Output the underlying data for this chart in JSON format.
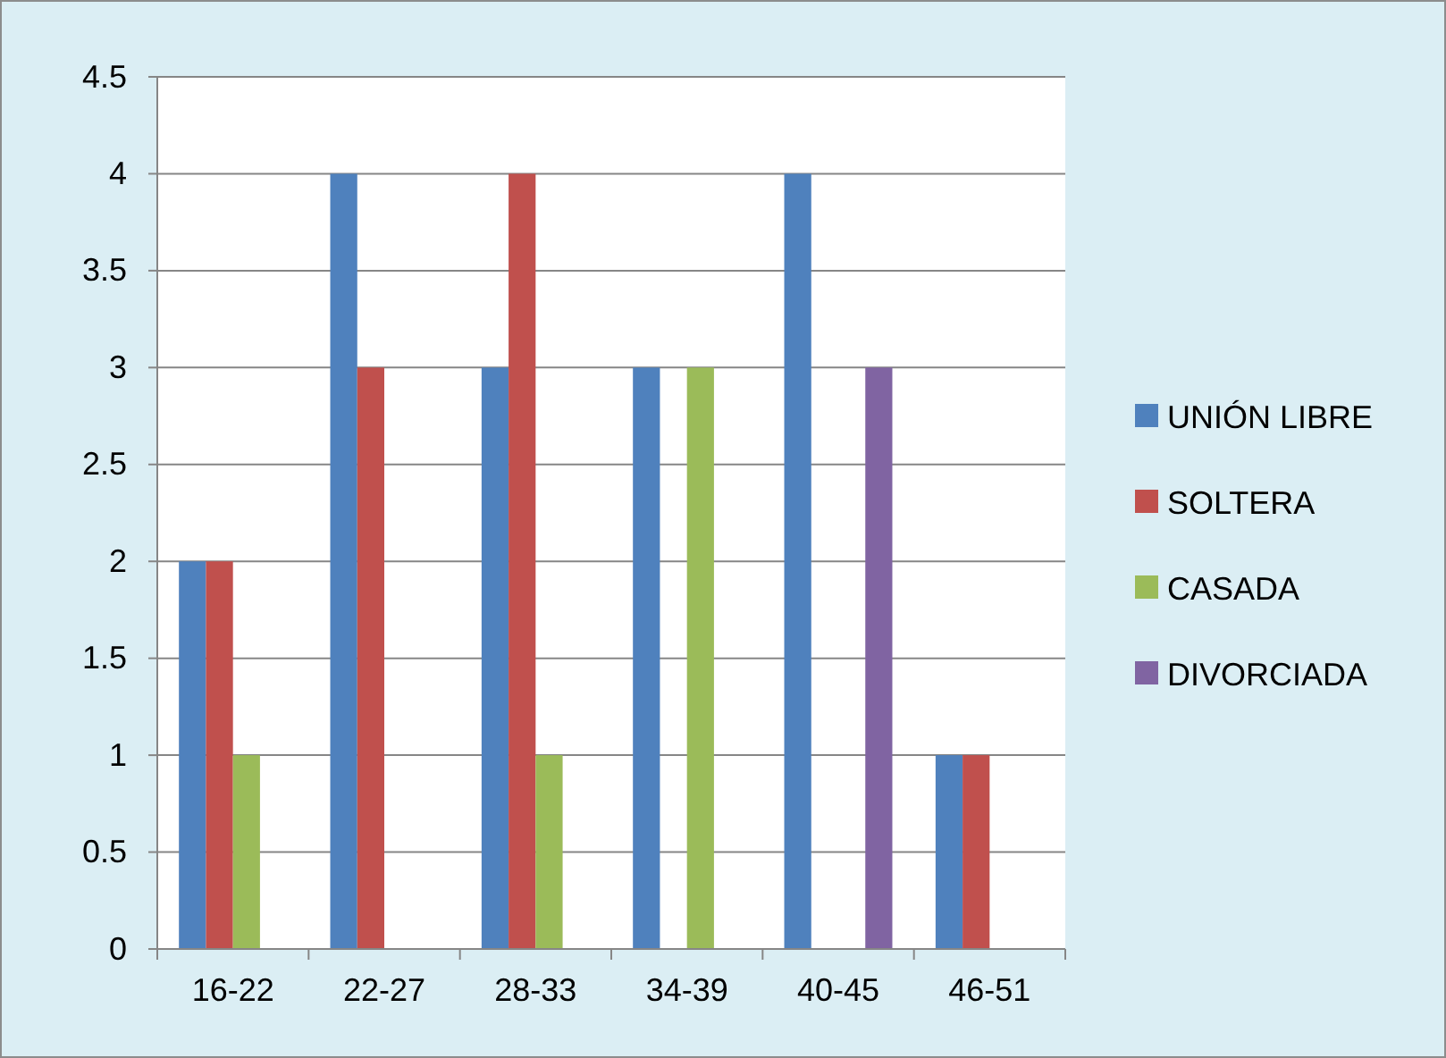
{
  "chart_data": {
    "type": "bar",
    "categories": [
      "16-22",
      "22-27",
      "28-33",
      "34-39",
      "40-45",
      "46-51"
    ],
    "series": [
      {
        "name": "UNIÓN LIBRE",
        "color": "#4f81bd",
        "values": [
          2,
          4,
          3,
          3,
          4,
          1
        ]
      },
      {
        "name": "SOLTERA",
        "color": "#c0504d",
        "values": [
          2,
          3,
          4,
          0,
          0,
          1
        ]
      },
      {
        "name": "CASADA",
        "color": "#9bbb59",
        "values": [
          1,
          0,
          1,
          3,
          0,
          0
        ]
      },
      {
        "name": "DIVORCIADA",
        "color": "#8064a2",
        "values": [
          0,
          0,
          0,
          0,
          3,
          0
        ]
      }
    ],
    "ylim": [
      0,
      4.5
    ],
    "yticks": [
      0,
      0.5,
      1,
      1.5,
      2,
      2.5,
      3,
      3.5,
      4,
      4.5
    ],
    "grid": "y",
    "legend": "right"
  }
}
